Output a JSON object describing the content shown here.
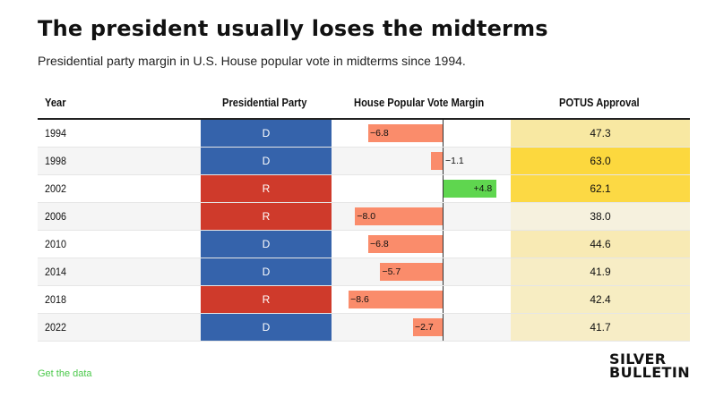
{
  "title": "The president usually loses the midterms",
  "subtitle": "Presidential party margin in U.S. House popular vote in midterms since 1994.",
  "headers": {
    "year": "Year",
    "party": "Presidential Party",
    "margin": "House Popular Vote Margin",
    "approval": "POTUS Approval"
  },
  "colors": {
    "dem": "#3563ab",
    "rep": "#cf3a2b",
    "neg_bar": "#fa8c6b",
    "pos_bar": "#5fd64f",
    "approval_low": "#f6f1de",
    "approval_high": "#fcd83e"
  },
  "rows": [
    {
      "year": "1994",
      "party": "D",
      "margin": -6.8,
      "margin_label": "−6.8",
      "approval": "47.3"
    },
    {
      "year": "1998",
      "party": "D",
      "margin": -1.1,
      "margin_label": "−1.1",
      "approval": "63.0"
    },
    {
      "year": "2002",
      "party": "R",
      "margin": 4.8,
      "margin_label": "+4.8",
      "approval": "62.1"
    },
    {
      "year": "2006",
      "party": "R",
      "margin": -8.0,
      "margin_label": "−8.0",
      "approval": "38.0"
    },
    {
      "year": "2010",
      "party": "D",
      "margin": -6.8,
      "margin_label": "−6.8",
      "approval": "44.6"
    },
    {
      "year": "2014",
      "party": "D",
      "margin": -5.7,
      "margin_label": "−5.7",
      "approval": "41.9"
    },
    {
      "year": "2018",
      "party": "R",
      "margin": -8.6,
      "margin_label": "−8.6",
      "approval": "42.4"
    },
    {
      "year": "2022",
      "party": "D",
      "margin": -2.7,
      "margin_label": "−2.7",
      "approval": "41.7"
    }
  ],
  "footer": {
    "link": "Get the data",
    "logo_line1": "SILVER",
    "logo_line2": "BULLETIN"
  }
}
